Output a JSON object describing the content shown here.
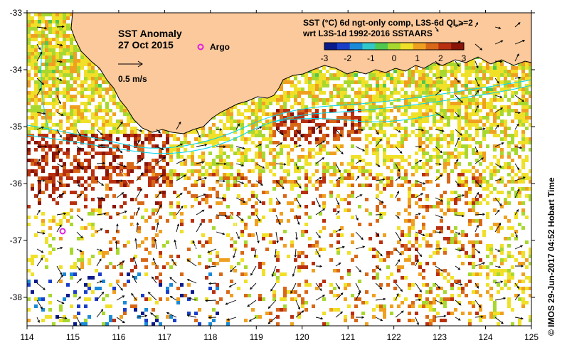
{
  "title": {
    "line1": "SST Anomaly",
    "line2": "27 Oct 2015"
  },
  "legend": {
    "argo_label": "Argo",
    "argo_color": "#e020e0",
    "velocity_scale_label": "0.5 m/s"
  },
  "colorbar": {
    "title_line1": "SST (°C) 6d ngt-only comp, L3S-6d QL>=2",
    "title_line2": "wrt L3S-1d 1992-2016 SSTAARS",
    "ticks": [
      "-3",
      "-2",
      "-1",
      "0",
      "1",
      "2",
      "3"
    ],
    "colors": [
      "#0a1a8a",
      "#1a3ec8",
      "#1a8ad8",
      "#30c8c8",
      "#50c850",
      "#a8d830",
      "#f0e028",
      "#f0a020",
      "#d86818",
      "#b83010",
      "#8a1408"
    ]
  },
  "colors": {
    "land": "#fbc99b",
    "coast": "#000000",
    "frame": "#000000",
    "contour": "#00d8f0"
  },
  "axes": {
    "x_ticks": [
      "114",
      "115",
      "116",
      "117",
      "118",
      "119",
      "120",
      "121",
      "122",
      "123",
      "124",
      "125"
    ],
    "y_ticks": [
      "-33",
      "-34",
      "-35",
      "-36",
      "-37",
      "-38"
    ],
    "x_range": [
      114,
      125
    ],
    "y_range": [
      -38.5,
      -33
    ]
  },
  "credit": "© IMOS 29-Jun-2017 04:52 Hobart Time"
}
